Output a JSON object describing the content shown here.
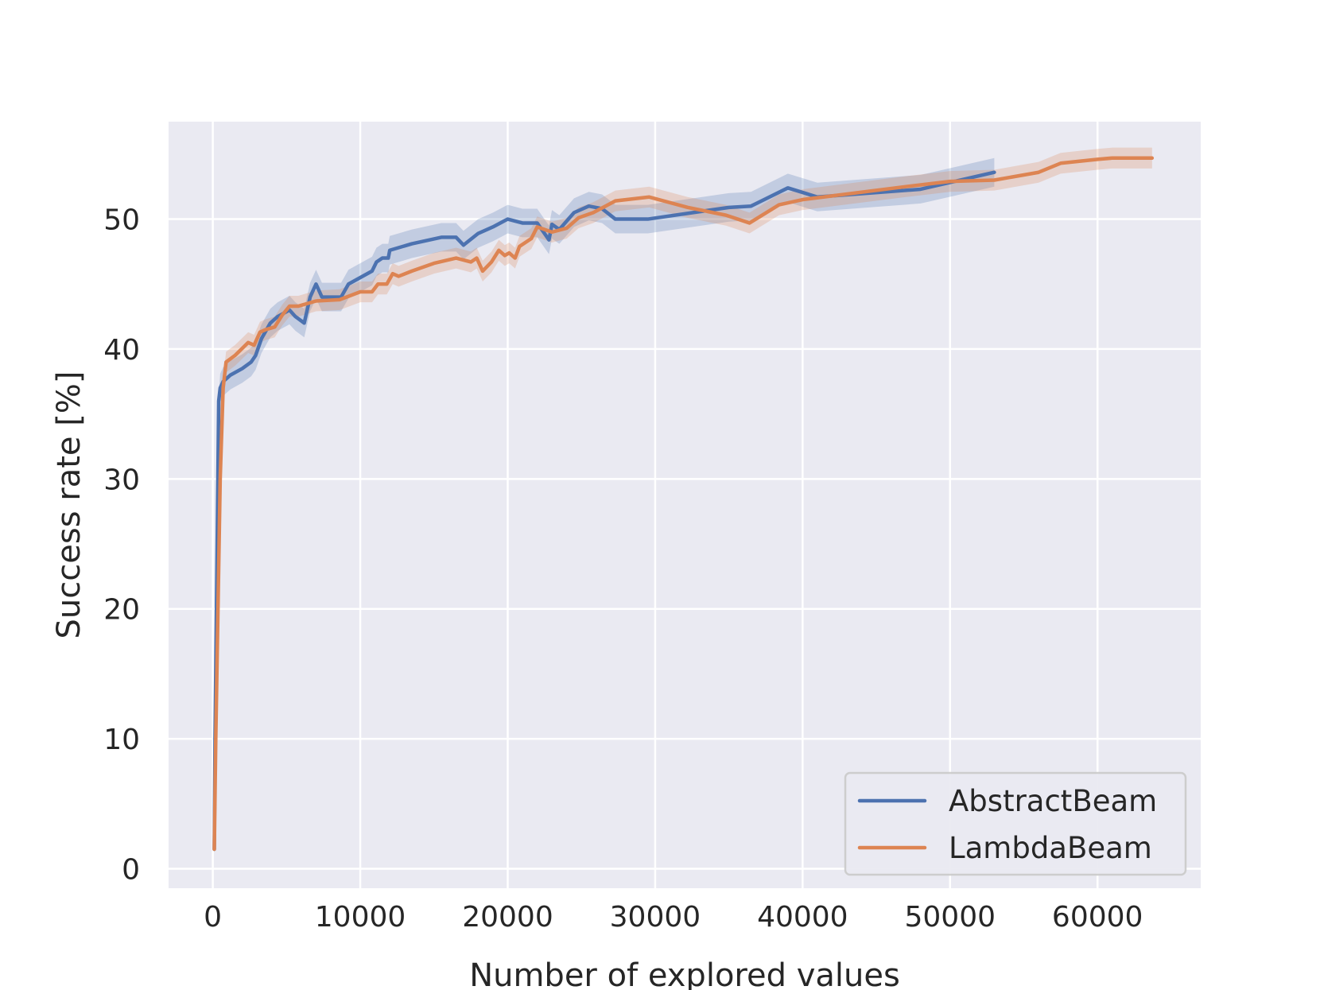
{
  "chart_data": {
    "type": "line",
    "title": "",
    "xlabel": "Number of explored values",
    "ylabel": "Success rate [%]",
    "xlim": [
      -3000,
      67000
    ],
    "ylim": [
      -1.5,
      57.5
    ],
    "xticks": [
      0,
      10000,
      20000,
      30000,
      40000,
      50000,
      60000
    ],
    "xtick_labels": [
      "0",
      "10000",
      "20000",
      "30000",
      "40000",
      "50000",
      "60000"
    ],
    "yticks": [
      0,
      10,
      20,
      30,
      40,
      50
    ],
    "ytick_labels": [
      "0",
      "10",
      "20",
      "30",
      "40",
      "50"
    ],
    "grid": true,
    "background": "#eaeaf2",
    "legend_position": "lower-right",
    "series": [
      {
        "name": "AbstractBeam",
        "color": "#4c72b0",
        "x": [
          100,
          150,
          250,
          400,
          500,
          700,
          1200,
          2000,
          2600,
          2900,
          3300,
          3900,
          4400,
          5200,
          5600,
          6200,
          6600,
          7000,
          7400,
          7700,
          8700,
          9200,
          10800,
          11100,
          11500,
          11900,
          12000,
          13500,
          15500,
          16500,
          17000,
          18000,
          19000,
          20000,
          21000,
          22000,
          22800,
          23000,
          23500,
          24500,
          25500,
          26400,
          27300,
          29500,
          35000,
          36500,
          39000,
          41000,
          48000,
          53000
        ],
        "y": [
          1.5,
          10,
          20,
          36,
          37,
          37.5,
          38,
          38.5,
          39,
          39.5,
          40.8,
          42,
          42.5,
          43,
          42.5,
          42,
          44,
          45,
          44,
          44,
          44,
          45,
          46,
          46.7,
          47,
          47,
          47.6,
          48.1,
          48.6,
          48.6,
          48,
          48.9,
          49.4,
          50,
          49.7,
          49.7,
          48.4,
          49.6,
          49.2,
          50.5,
          51,
          50.8,
          50,
          50,
          50.9,
          51,
          52.4,
          51.7,
          52.3,
          53.6
        ]
      },
      {
        "name": "LambdaBeam",
        "color": "#dd8452",
        "x": [
          100,
          200,
          350,
          500,
          700,
          900,
          1500,
          2400,
          2800,
          3200,
          3600,
          4200,
          4700,
          5200,
          5800,
          7000,
          8600,
          10000,
          10800,
          11200,
          11800,
          12200,
          12600,
          13500,
          15000,
          16500,
          17500,
          17900,
          18300,
          18900,
          19400,
          19800,
          20100,
          20500,
          20800,
          21600,
          22000,
          23000,
          24000,
          24800,
          25800,
          27300,
          29600,
          32200,
          34800,
          36400,
          38400,
          40000,
          47000,
          50000,
          53000,
          56000,
          57500,
          60000,
          61000,
          63700
        ],
        "y": [
          1.5,
          10,
          20,
          30,
          37,
          39,
          39.5,
          40.5,
          40.3,
          41.3,
          41.5,
          41.7,
          42.6,
          43.3,
          43.3,
          43.7,
          43.8,
          44.4,
          44.4,
          45,
          45,
          45.8,
          45.6,
          46,
          46.6,
          47,
          46.7,
          47,
          46,
          46.7,
          47.6,
          47.2,
          47.4,
          47,
          47.9,
          48.5,
          49.4,
          49,
          49.3,
          50.1,
          50.5,
          51.4,
          51.7,
          50.9,
          50.3,
          49.7,
          51.1,
          51.5,
          52.5,
          52.9,
          53,
          53.6,
          54.3,
          54.6,
          54.7,
          54.7
        ]
      }
    ]
  }
}
